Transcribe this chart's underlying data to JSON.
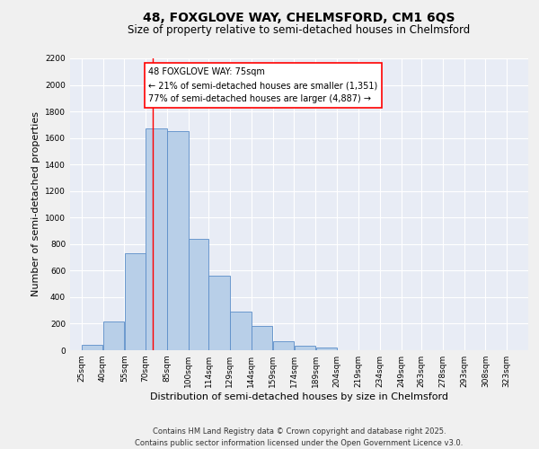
{
  "title1": "48, FOXGLOVE WAY, CHELMSFORD, CM1 6QS",
  "title2": "Size of property relative to semi-detached houses in Chelmsford",
  "xlabel": "Distribution of semi-detached houses by size in Chelmsford",
  "ylabel": "Number of semi-detached properties",
  "bar_left_edges": [
    25,
    40,
    55,
    70,
    85,
    100,
    114,
    129,
    144,
    159,
    174,
    189,
    204,
    219,
    234,
    249,
    263,
    278,
    293,
    308
  ],
  "bar_widths": [
    15,
    15,
    15,
    15,
    15,
    14,
    15,
    15,
    15,
    15,
    15,
    15,
    15,
    15,
    15,
    14,
    15,
    15,
    15,
    15
  ],
  "bar_heights": [
    40,
    220,
    730,
    1670,
    1650,
    840,
    560,
    290,
    180,
    70,
    35,
    20,
    0,
    0,
    0,
    0,
    0,
    0,
    0,
    0
  ],
  "bar_color": "#b8cfe8",
  "bar_edge_color": "#5b8dc8",
  "red_line_x": 75,
  "annotation_text1": "48 FOXGLOVE WAY: 75sqm",
  "annotation_text2": "← 21% of semi-detached houses are smaller (1,351)",
  "annotation_text3": "77% of semi-detached houses are larger (4,887) →",
  "ylim": [
    0,
    2200
  ],
  "yticks": [
    0,
    200,
    400,
    600,
    800,
    1000,
    1200,
    1400,
    1600,
    1800,
    2000,
    2200
  ],
  "xtick_labels": [
    "25sqm",
    "40sqm",
    "55sqm",
    "70sqm",
    "85sqm",
    "100sqm",
    "114sqm",
    "129sqm",
    "144sqm",
    "159sqm",
    "174sqm",
    "189sqm",
    "204sqm",
    "219sqm",
    "234sqm",
    "249sqm",
    "263sqm",
    "278sqm",
    "293sqm",
    "308sqm",
    "323sqm"
  ],
  "xtick_positions": [
    25,
    40,
    55,
    70,
    85,
    100,
    114,
    129,
    144,
    159,
    174,
    189,
    204,
    219,
    234,
    249,
    263,
    278,
    293,
    308,
    323
  ],
  "bg_color": "#e8ecf5",
  "grid_color": "#ffffff",
  "fig_bg_color": "#f0f0f0",
  "footer1": "Contains HM Land Registry data © Crown copyright and database right 2025.",
  "footer2": "Contains public sector information licensed under the Open Government Licence v3.0.",
  "title1_fontsize": 10,
  "title2_fontsize": 8.5,
  "axis_label_fontsize": 8,
  "tick_fontsize": 6.5,
  "footer_fontsize": 6,
  "annot_fontsize": 7
}
